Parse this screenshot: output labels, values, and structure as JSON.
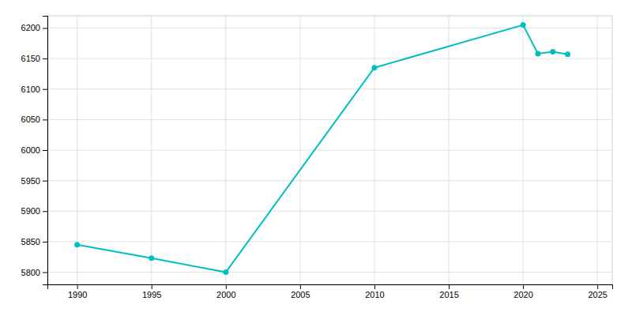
{
  "chart_data": {
    "type": "line",
    "x": [
      1990,
      1995,
      2000,
      2010,
      2020,
      2021,
      2022,
      2023
    ],
    "values": [
      5845,
      5823,
      5800,
      6135,
      6205,
      6158,
      6161,
      6157
    ],
    "color": "#00BFBF",
    "marker": "circle",
    "xlim": [
      1988,
      2026
    ],
    "ylim": [
      5780,
      6220
    ],
    "xticks": [
      1990,
      1995,
      2000,
      2005,
      2010,
      2015,
      2020,
      2025
    ],
    "yticks": [
      5800,
      5850,
      5900,
      5950,
      6000,
      6050,
      6100,
      6150,
      6200
    ],
    "grid": true
  }
}
